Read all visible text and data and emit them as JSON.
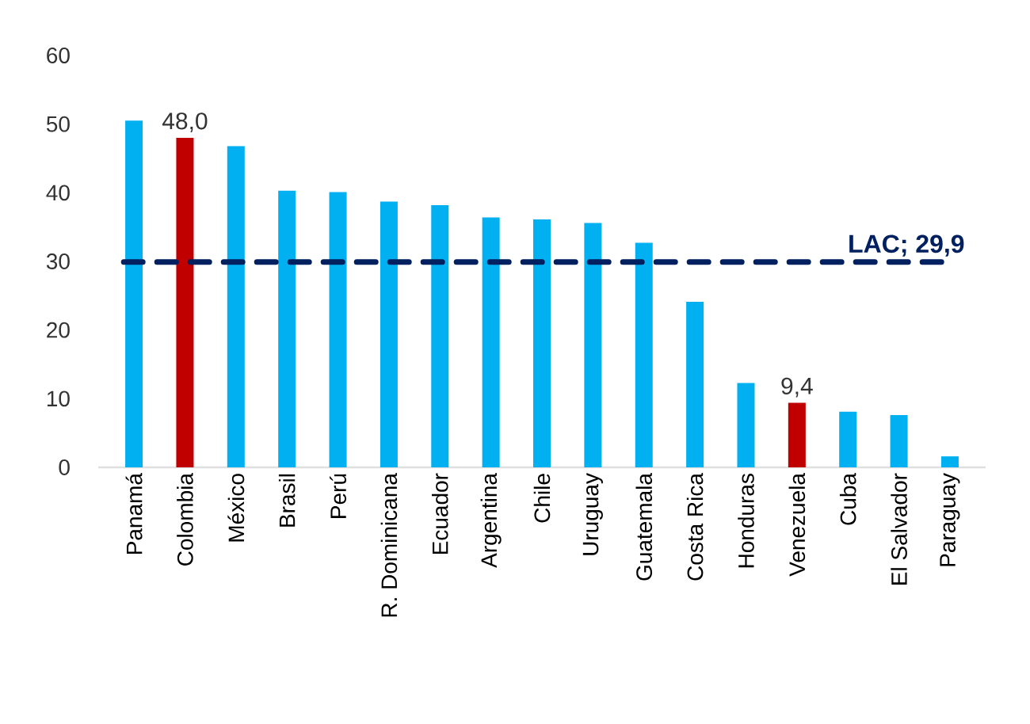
{
  "chart_data": {
    "type": "bar",
    "categories": [
      "Panamá",
      "Colombia",
      "México",
      "Brasil",
      "Perú",
      "R. Dominicana",
      "Ecuador",
      "Argentina",
      "Chile",
      "Uruguay",
      "Guatemala",
      "Costa Rica",
      "Honduras",
      "Venezuela",
      "Cuba",
      "El Salvador",
      "Paraguay"
    ],
    "values": [
      50.5,
      48.0,
      46.8,
      40.3,
      40.1,
      38.7,
      38.2,
      36.4,
      36.1,
      35.6,
      32.7,
      24.1,
      12.3,
      9.4,
      8.1,
      7.6,
      1.6
    ],
    "colors": [
      "#00b0f0",
      "#c00000",
      "#00b0f0",
      "#00b0f0",
      "#00b0f0",
      "#00b0f0",
      "#00b0f0",
      "#00b0f0",
      "#00b0f0",
      "#00b0f0",
      "#00b0f0",
      "#00b0f0",
      "#00b0f0",
      "#c00000",
      "#00b0f0",
      "#00b0f0",
      "#00b0f0"
    ],
    "value_labels": [
      null,
      "48,0",
      null,
      null,
      null,
      null,
      null,
      null,
      null,
      null,
      null,
      null,
      null,
      "9,4",
      null,
      null,
      null
    ],
    "ylim": [
      0,
      60
    ],
    "yticks": [
      0,
      10,
      20,
      30,
      40,
      50,
      60
    ],
    "grid": false,
    "ref_lines": [
      {
        "axis": "y",
        "value": 29.9,
        "label": "LAC; 29,9",
        "color": "#002060",
        "line_style": "dashed"
      }
    ]
  }
}
